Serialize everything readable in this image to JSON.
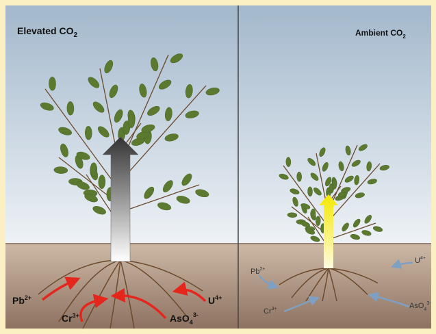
{
  "panels": [
    {
      "title": {
        "text": "Elevated CO",
        "sub": "2"
      },
      "ions": [
        {
          "base": "Pb",
          "sup": "2+"
        },
        {
          "base": "Cr",
          "sup": "3+"
        },
        {
          "base": "U",
          "sup": "4+"
        },
        {
          "base": "AsO",
          "sub": "4",
          "sup": "3-"
        }
      ]
    },
    {
      "title": {
        "text": "Ambient CO",
        "sub": "2"
      },
      "ions": [
        {
          "base": "Pb",
          "sup": "2+"
        },
        {
          "base": "Cr",
          "sup": "3+"
        },
        {
          "base": "U",
          "sup": "4+"
        },
        {
          "base": "AsO",
          "sub": "4",
          "sup": "3-"
        }
      ]
    }
  ]
}
